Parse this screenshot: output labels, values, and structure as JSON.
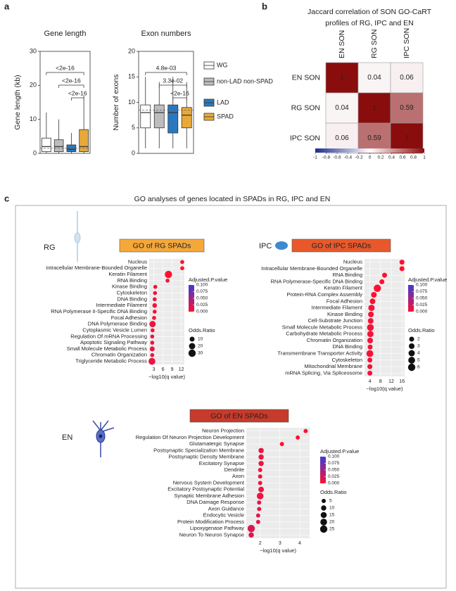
{
  "panel_labels": [
    "a",
    "b",
    "c"
  ],
  "panel_c_title": "GO analyses of genes located in SPADs in RG, IPC and EN",
  "chart_data": [
    {
      "type": "box",
      "title": "Gene length",
      "y_label": "Gene length (kb)",
      "categories": [
        "WG",
        "non-LAD non-SPAD",
        "LAD",
        "SPAD"
      ],
      "colors": [
        "#ffffff",
        "#bdbdbd",
        "#2a78bf",
        "#e9a93a"
      ],
      "low": [
        0,
        0,
        0,
        0
      ],
      "q1": [
        0.5,
        0.5,
        0.5,
        0.5
      ],
      "median": [
        2,
        2,
        1.2,
        2
      ],
      "q3": [
        4.5,
        4,
        2.5,
        7
      ],
      "high": [
        12,
        10,
        6,
        17
      ],
      "ylim": [
        0,
        30
      ],
      "yticks": [
        0,
        10,
        20,
        30
      ],
      "reference_line": 1.5,
      "comparisons": [
        {
          "label": "<2e-16",
          "pair": [
            "WG",
            "SPAD"
          ]
        },
        {
          "label": "<2e-16",
          "pair": [
            "non-LAD non-SPAD",
            "SPAD"
          ]
        },
        {
          "label": "<2e-16",
          "pair": [
            "LAD",
            "SPAD"
          ]
        }
      ]
    },
    {
      "type": "box",
      "title": "Exon numbers",
      "y_label": "Number of exons",
      "categories": [
        "WG",
        "non-LAD non-SPAD",
        "LAD",
        "SPAD"
      ],
      "colors": [
        "#ffffff",
        "#bdbdbd",
        "#2a78bf",
        "#e9a93a"
      ],
      "low": [
        1,
        1,
        1,
        1
      ],
      "q1": [
        5,
        5,
        4,
        5
      ],
      "median": [
        8,
        8,
        8,
        7.5
      ],
      "q3": [
        9.5,
        9.5,
        9.5,
        9
      ],
      "high": [
        15,
        14,
        15,
        14
      ],
      "ylim": [
        0,
        20
      ],
      "yticks": [
        0,
        5,
        10,
        15,
        20
      ],
      "reference_line": 8.5,
      "comparisons": [
        {
          "label": "4.8e-03",
          "pair": [
            "WG",
            "SPAD"
          ]
        },
        {
          "label": "3.3e-02",
          "pair": [
            "non-LAD non-SPAD",
            "SPAD"
          ]
        },
        {
          "label": "<2e-16",
          "pair": [
            "LAD",
            "SPAD"
          ]
        }
      ]
    },
    {
      "type": "heatmap",
      "title": [
        "Jaccard correlation of SON GO-CaRT",
        "profiles of RG, IPC and EN"
      ],
      "rows": [
        "EN SON",
        "RG SON",
        "IPC SON"
      ],
      "columns": [
        "EN SON",
        "RG SON",
        "IPC SON"
      ],
      "values": [
        [
          1,
          0.04,
          0.06
        ],
        [
          0.04,
          1,
          0.59
        ],
        [
          0.06,
          0.59,
          1
        ]
      ],
      "colorscale": [
        "#1c2f8a",
        "#ffffff",
        "#8a0d0d"
      ],
      "clim": [
        -1,
        1
      ],
      "cticks": [
        -1,
        -0.8,
        -0.6,
        -0.4,
        -0.2,
        0,
        0.2,
        0.4,
        0.6,
        0.8,
        1
      ]
    },
    {
      "type": "dot",
      "label": "RG",
      "title": "GO of RG SPADs",
      "title_color": "#f5a83a",
      "categories": [
        "Nucleus",
        "Intracellular Membrane-Bounded Organelle",
        "Keratin Filament",
        "RNA Binding",
        "Kinase Binding",
        "Cytoskeleton",
        "DNA Binding",
        "Intermediate Filament",
        "RNA Polymerase II-Specific DNA Binding",
        "Focal Adhesion",
        "DNA Polymerase Binding",
        "Cytoplasmic Vesicle Lumen",
        "Regulation Of mRNA Processing",
        "Apoptotic Signaling Pathway",
        "Small Molecule Metabolic Process",
        "Chromatin Organization",
        "Triglyceride Metabolic Process"
      ],
      "values": [
        12.3,
        12.3,
        7.8,
        7.5,
        3.5,
        3.4,
        3.3,
        3.3,
        3.3,
        3.1,
        2.6,
        2.6,
        2.5,
        2.5,
        2.5,
        2.5,
        2.4
      ],
      "sizes": [
        5,
        5,
        30,
        5,
        5,
        5,
        5,
        8,
        5,
        5,
        20,
        5,
        5,
        5,
        10,
        5,
        25
      ],
      "padj": [
        0,
        0,
        0,
        0,
        0.005,
        0.005,
        0.005,
        0.005,
        0.005,
        0.005,
        0.01,
        0.01,
        0.01,
        0.01,
        0.01,
        0.01,
        0.01
      ],
      "xlim": [
        1.5,
        13
      ],
      "xticks": [
        3,
        6,
        9,
        12
      ],
      "x_label": "−log10(q value)",
      "color_legend_title": "Adjusted.P.value",
      "colorscale": [
        "#ff1030",
        "#3c3cd6"
      ],
      "plim": [
        0,
        0.1
      ],
      "color_ticks": [
        {
          "value": 0.1,
          "label": "0.100"
        },
        {
          "value": 0.075,
          "label": "0.075"
        },
        {
          "value": 0.05,
          "label": "0.050"
        },
        {
          "value": 0.025,
          "label": "0.025"
        },
        {
          "value": 0,
          "label": "0.000"
        }
      ],
      "size_legend_title": "Odds.Ratio",
      "size_ticks": [
        10,
        20,
        30
      ]
    },
    {
      "type": "dot",
      "label": "IPC",
      "title": "GO of IPC SPADs",
      "title_color": "#e8582b",
      "categories": [
        "Nucleus",
        "Intracellular Membrane-Bounded Organelle",
        "RNA Binding",
        "RNA Polymerase-Specific DNA Binding",
        "Keratin Filament",
        "Protein-RNA Complex Assembly",
        "Focal Adhesion",
        "Intermediate Filament",
        "Kinase Binding",
        "Cell-Substrate Junction",
        "Small Molecule Metabolic Process",
        "Carbohydrate Metabolic Process",
        "Chromatin Organization",
        "DNA Binding",
        "Transmembrane Transporter Activity",
        "Cytoskeleton",
        "Mitochondrial Membrane",
        "mRNA Splicing, Via Spliceosome"
      ],
      "values": [
        16,
        16,
        9.5,
        8.5,
        6.8,
        5.5,
        5,
        4.6,
        4.4,
        4.3,
        4.2,
        4.2,
        4.1,
        4.1,
        4,
        4,
        4,
        4
      ],
      "sizes": [
        2,
        2,
        2,
        2,
        6,
        3,
        3,
        4,
        3,
        3,
        5,
        4,
        3,
        2,
        5,
        2,
        2,
        2
      ],
      "padj": [
        0,
        0,
        0,
        0,
        0,
        0,
        0.005,
        0.005,
        0.005,
        0.005,
        0.005,
        0.005,
        0.005,
        0.005,
        0.005,
        0.005,
        0.005,
        0.005
      ],
      "xlim": [
        2,
        17
      ],
      "xticks": [
        4,
        8,
        12,
        16
      ],
      "x_label": "−log10(q value)",
      "color_legend_title": "Adjusted.P.value",
      "colorscale": [
        "#ff1030",
        "#3c3cd6"
      ],
      "plim": [
        0,
        0.1
      ],
      "color_ticks": [
        {
          "value": 0.1,
          "label": "0.100"
        },
        {
          "value": 0.075,
          "label": "0.075"
        },
        {
          "value": 0.05,
          "label": "0.050"
        },
        {
          "value": 0.025,
          "label": "0.025"
        },
        {
          "value": 0,
          "label": "0.000"
        }
      ],
      "size_legend_title": "Odds.Ratio",
      "size_ticks": [
        2,
        3,
        4,
        5,
        6
      ]
    },
    {
      "type": "dot",
      "label": "EN",
      "title": "GO of EN SPADs",
      "title_color": "#c63b2c",
      "categories": [
        "Neuron Projection",
        "Regulation Of Neuron Projection Development",
        "Glutamatergic Synapse",
        "Postsynaptic Specialization Membrane",
        "Postsynaptic Density Membrane",
        "Excitatory Synapse",
        "Dendrite",
        "Axon",
        "Nervous System Development",
        "Excitatory Postsynaptic Potential",
        "Synaptic Membrane Adhesion",
        "DNA Damage Response",
        "Axon Guidance",
        "Endocytic Vesicle",
        "Protein Modification Process",
        "Lipoxygenase Pathway",
        "Neuron To Neuron Synapse"
      ],
      "values": [
        4.3,
        3.9,
        3.1,
        2.05,
        2.05,
        2.05,
        2,
        2,
        2,
        2.05,
        2,
        1.95,
        1.95,
        1.9,
        1.9,
        1.55,
        1.55
      ],
      "sizes": [
        5,
        5,
        5,
        10,
        10,
        10,
        5,
        5,
        5,
        12,
        20,
        5,
        5,
        5,
        5,
        25,
        10
      ],
      "padj": [
        0,
        0,
        0,
        0.01,
        0.01,
        0.01,
        0.01,
        0.01,
        0.01,
        0.01,
        0.01,
        0.01,
        0.01,
        0.015,
        0.015,
        0.02,
        0.02
      ],
      "xlim": [
        1.3,
        4.5
      ],
      "xticks": [
        2,
        3,
        4
      ],
      "x_label": "−log10(q value)",
      "color_legend_title": "Adjusted.P.value",
      "colorscale": [
        "#ff1030",
        "#3c3cd6"
      ],
      "plim": [
        0,
        0.1
      ],
      "color_ticks": [
        {
          "value": 0.1,
          "label": "0.100"
        },
        {
          "value": 0.075,
          "label": "0.075"
        },
        {
          "value": 0.05,
          "label": "0.050"
        },
        {
          "value": 0.025,
          "label": "0.025"
        },
        {
          "value": 0,
          "label": "0.000"
        }
      ],
      "size_legend_title": "Odds.Ratio",
      "size_ticks": [
        5,
        10,
        15,
        20,
        25
      ]
    }
  ]
}
